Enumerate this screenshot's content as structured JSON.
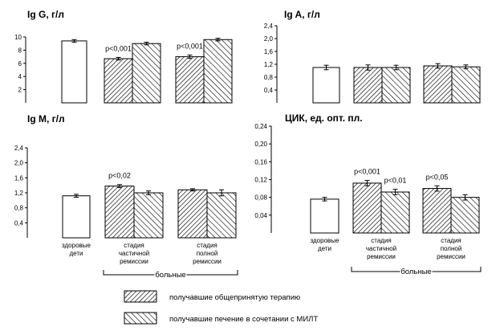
{
  "chart_data": [
    {
      "type": "bar",
      "title": "Ig G, г/л",
      "ylim": [
        0,
        10
      ],
      "yticks": [
        "2",
        "4",
        "6",
        "8",
        "10"
      ],
      "categories": [
        "здоровые дети",
        "стадия частичной ремиссии",
        "стадия полной ремиссии"
      ],
      "groups": [
        {
          "bars": [
            {
              "value": 9.4,
              "error": 0.2,
              "pattern": "plain"
            }
          ]
        },
        {
          "bars": [
            {
              "value": 6.7,
              "error": 0.2,
              "pattern": "hatch-a"
            },
            {
              "value": 9.0,
              "error": 0.2,
              "pattern": "hatch-b"
            }
          ],
          "annotations": [
            {
              "text": "p<0,001",
              "bar": 0
            }
          ]
        },
        {
          "bars": [
            {
              "value": 7.0,
              "error": 0.25,
              "pattern": "hatch-a"
            },
            {
              "value": 9.6,
              "error": 0.2,
              "pattern": "hatch-b"
            }
          ],
          "annotations": [
            {
              "text": "p<0,001",
              "bar": 0
            }
          ]
        }
      ],
      "show_x_labels": false
    },
    {
      "type": "bar",
      "title": "Ig A, г/л",
      "ylim": [
        0,
        2.4
      ],
      "yticks": [
        "0,4",
        "0,8",
        "1,2",
        "1,6",
        "2,0",
        "2,4"
      ],
      "categories": [
        "здоровые дети",
        "стадия частичной ремиссии",
        "стадия полной ремиссии"
      ],
      "groups": [
        {
          "bars": [
            {
              "value": 1.1,
              "error": 0.07,
              "pattern": "plain"
            }
          ]
        },
        {
          "bars": [
            {
              "value": 1.1,
              "error": 0.08,
              "pattern": "hatch-a"
            },
            {
              "value": 1.1,
              "error": 0.07,
              "pattern": "hatch-b"
            }
          ]
        },
        {
          "bars": [
            {
              "value": 1.15,
              "error": 0.07,
              "pattern": "hatch-a"
            },
            {
              "value": 1.12,
              "error": 0.06,
              "pattern": "hatch-b"
            }
          ]
        }
      ],
      "show_x_labels": false
    },
    {
      "type": "bar",
      "title": "Ig M, г/л",
      "ylim": [
        0,
        2.4
      ],
      "yticks": [
        "0,4",
        "0,8",
        "1,2",
        "1,6",
        "2,0",
        "2,4"
      ],
      "categories": [
        "здоровые дети",
        "стадия частичной ремиссии",
        "стадия полной ремиссии"
      ],
      "groups": [
        {
          "bars": [
            {
              "value": 1.12,
              "error": 0.04,
              "pattern": "plain"
            }
          ]
        },
        {
          "bars": [
            {
              "value": 1.38,
              "error": 0.04,
              "pattern": "hatch-a"
            },
            {
              "value": 1.2,
              "error": 0.05,
              "pattern": "hatch-b"
            }
          ],
          "annotations": [
            {
              "text": "p<0,02",
              "bar": 0
            }
          ]
        },
        {
          "bars": [
            {
              "value": 1.28,
              "error": 0.03,
              "pattern": "hatch-a"
            },
            {
              "value": 1.2,
              "error": 0.08,
              "pattern": "hatch-b"
            }
          ]
        }
      ],
      "show_x_labels": true
    },
    {
      "type": "bar",
      "title": "ЦИК, ед. опт. пл.",
      "ylim": [
        0,
        0.24
      ],
      "yticks": [
        "0,04",
        "0,08",
        "0,12",
        "0,16",
        "0,20",
        "0,24"
      ],
      "categories": [
        "здоровые дети",
        "стадия частичной ремиссии",
        "стадия полной ремиссии"
      ],
      "groups": [
        {
          "bars": [
            {
              "value": 0.076,
              "error": 0.004,
              "pattern": "plain"
            }
          ]
        },
        {
          "bars": [
            {
              "value": 0.112,
              "error": 0.006,
              "pattern": "hatch-a"
            },
            {
              "value": 0.092,
              "error": 0.006,
              "pattern": "hatch-b"
            }
          ],
          "annotations": [
            {
              "text": "p<0,001",
              "bar": 0
            },
            {
              "text": "p<0,01",
              "bar": 1
            }
          ]
        },
        {
          "bars": [
            {
              "value": 0.1,
              "error": 0.006,
              "pattern": "hatch-a"
            },
            {
              "value": 0.08,
              "error": 0.006,
              "pattern": "hatch-b"
            }
          ],
          "annotations": [
            {
              "text": "p<0,05",
              "bar": 0
            }
          ]
        }
      ],
      "show_x_labels": true
    }
  ],
  "group_label": "больные",
  "legend": [
    {
      "label": "получавшие общепринятую терапию",
      "pattern": "hatch-a"
    },
    {
      "label": "получавшие печение в сочетании с МИЛТ",
      "pattern": "hatch-b"
    }
  ],
  "colors": {
    "stroke": "#000000",
    "fill": "#ffffff",
    "hatch": "#000000"
  }
}
